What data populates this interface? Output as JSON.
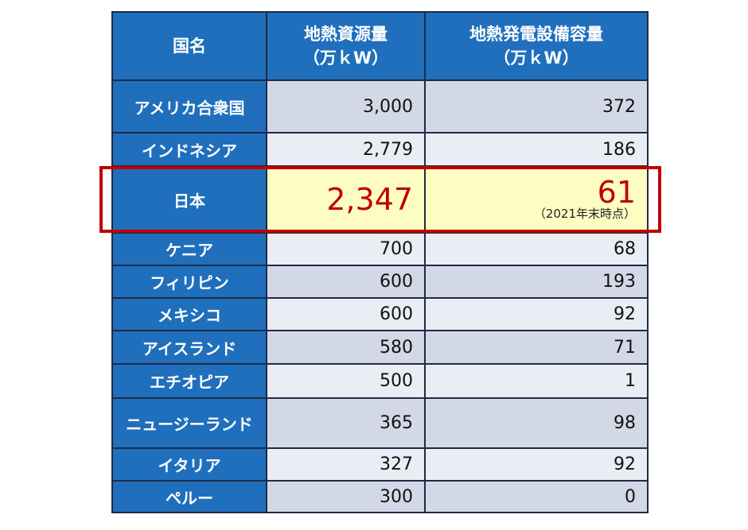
{
  "header": {
    "country": "国名",
    "resource_line1": "地熱資源量",
    "resource_line2": "（万ｋW）",
    "capacity_line1": "地熱発電設備容量",
    "capacity_line2": "（万ｋW）"
  },
  "rows": [
    {
      "country": "アメリカ合衆国",
      "resource": "3,000",
      "capacity": "372",
      "height": 66
    },
    {
      "country": "インドネシア",
      "resource": "2,779",
      "capacity": "186",
      "height": 42
    },
    {
      "country": "日本",
      "resource": "2,347",
      "capacity": "61",
      "note": "（2021年末時点）",
      "highlight": true,
      "height": 84
    },
    {
      "country": "ケニア",
      "resource": "700",
      "capacity": "68",
      "height": 41
    },
    {
      "country": "フィリピン",
      "resource": "600",
      "capacity": "193",
      "height": 41
    },
    {
      "country": "メキシコ",
      "resource": "600",
      "capacity": "92",
      "height": 41
    },
    {
      "country": "アイスランド",
      "resource": "580",
      "capacity": "71",
      "height": 42
    },
    {
      "country": "エチオピア",
      "resource": "500",
      "capacity": "1",
      "height": 43
    },
    {
      "country": "ニュージーランド",
      "resource": "365",
      "capacity": "98",
      "height": 63
    },
    {
      "country": "イタリア",
      "resource": "327",
      "capacity": "92",
      "height": 41
    },
    {
      "country": "ペルー",
      "resource": "300",
      "capacity": "0",
      "height": 40
    }
  ],
  "chart_data": {
    "type": "table",
    "columns": [
      "国名",
      "地熱資源量（万ｋW）",
      "地熱発電設備容量（万ｋW）"
    ],
    "categories": [
      "アメリカ合衆国",
      "インドネシア",
      "日本",
      "ケニア",
      "フィリピン",
      "メキシコ",
      "アイスランド",
      "エチオピア",
      "ニュージーランド",
      "イタリア",
      "ペルー"
    ],
    "series": [
      {
        "name": "地熱資源量（万ｋW）",
        "values": [
          3000,
          2779,
          2347,
          700,
          600,
          600,
          580,
          500,
          365,
          327,
          300
        ]
      },
      {
        "name": "地熱発電設備容量（万ｋW）",
        "values": [
          372,
          186,
          61,
          68,
          193,
          92,
          71,
          1,
          98,
          92,
          0
        ]
      }
    ],
    "annotations": [
      "（2021年末時点）"
    ],
    "highlighted_row": "日本"
  },
  "colors": {
    "header_bg": "#1f6fbd",
    "row_odd": "#d3d8e6",
    "row_even": "#eaedf4",
    "highlight_bg": "#fdfdc2",
    "highlight_text": "#c00000"
  }
}
